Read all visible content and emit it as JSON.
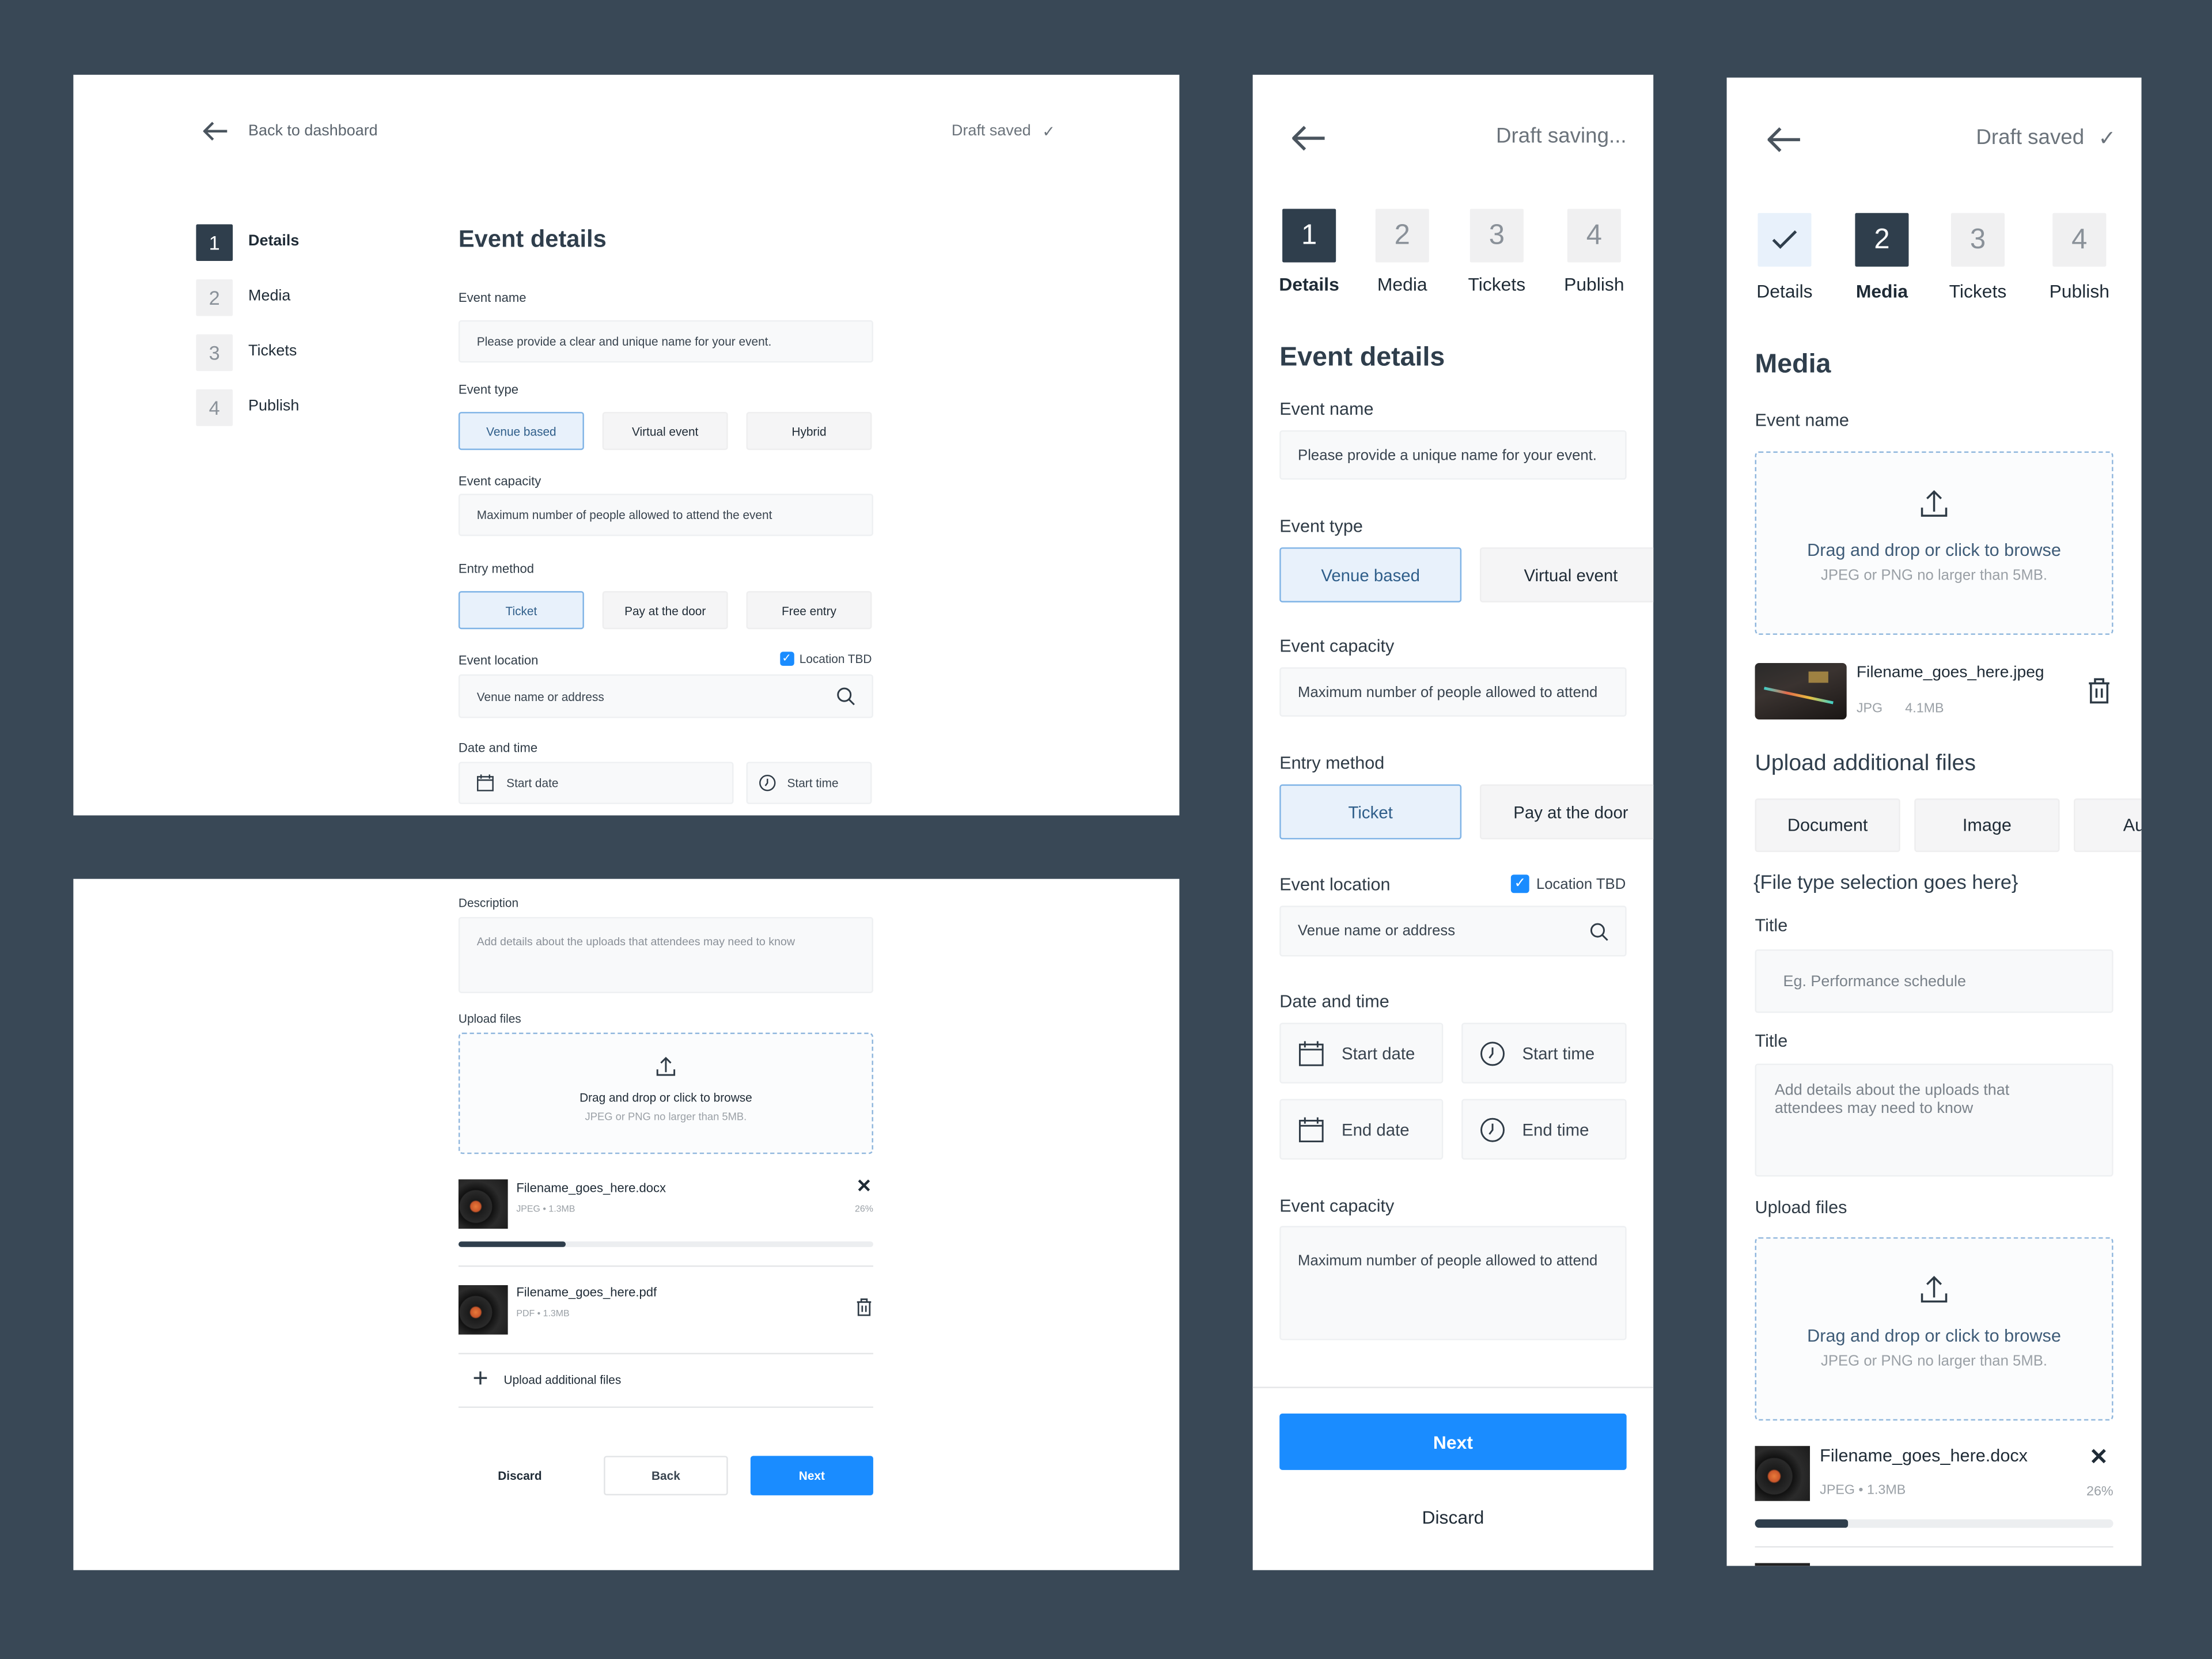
{
  "colors": {
    "background": "#394856",
    "primary_dark": "#2f3e4c",
    "accent_blue": "#1a8cff",
    "selected_bg": "#e8f1fb"
  },
  "desktop_details": {
    "back_label": "Back to dashboard",
    "draft_status": "Draft saved",
    "steps": [
      {
        "num": "1",
        "label": "Details"
      },
      {
        "num": "2",
        "label": "Media"
      },
      {
        "num": "3",
        "label": "Tickets"
      },
      {
        "num": "4",
        "label": "Publish"
      }
    ],
    "title": "Event details",
    "event_name_label": "Event name",
    "event_name_placeholder": "Please provide a clear and unique name for your event.",
    "event_type_label": "Event type",
    "event_types": [
      "Venue based",
      "Virtual event",
      "Hybrid"
    ],
    "capacity_label": "Event capacity",
    "capacity_placeholder": "Maximum number of people allowed to attend the event",
    "entry_label": "Entry method",
    "entry_methods": [
      "Ticket",
      "Pay at the door",
      "Free entry"
    ],
    "location_label": "Event location",
    "location_tbd": "Location TBD",
    "location_placeholder": "Venue name or address",
    "datetime_label": "Date and time",
    "start_date": "Start date",
    "start_time": "Start time"
  },
  "desktop_media": {
    "description_label": "Description",
    "description_placeholder": "Add details about the uploads that attendees may need to know",
    "upload_label": "Upload files",
    "drop_text": "Drag and drop or click to browse",
    "drop_sub": "JPEG or PNG no larger than 5MB.",
    "files": [
      {
        "name": "Filename_goes_here.docx",
        "type": "JPEG",
        "size": "1.3MB",
        "progress": "26%",
        "progress_value": 26
      },
      {
        "name": "Filename_goes_here.pdf",
        "type": "PDF",
        "size": "1.3MB"
      }
    ],
    "upload_more": "Upload additional files",
    "discard": "Discard",
    "back": "Back",
    "next": "Next"
  },
  "mobile_details": {
    "draft_status": "Draft saving...",
    "steps": [
      {
        "num": "1",
        "label": "Details"
      },
      {
        "num": "2",
        "label": "Media"
      },
      {
        "num": "3",
        "label": "Tickets"
      },
      {
        "num": "4",
        "label": "Publish"
      }
    ],
    "title": "Event details",
    "event_name_label": "Event name",
    "event_name_placeholder": "Please provide a unique name for your event.",
    "event_type_label": "Event type",
    "event_types": [
      "Venue based",
      "Virtual event"
    ],
    "capacity_label": "Event capacity",
    "capacity_placeholder": "Maximum number of people allowed to attend",
    "entry_label": "Entry method",
    "entry_methods": [
      "Ticket",
      "Pay at the door"
    ],
    "location_label": "Event location",
    "location_tbd": "Location TBD",
    "location_placeholder": "Venue name or address",
    "datetime_label": "Date and time",
    "start_date": "Start date",
    "start_time": "Start time",
    "end_date": "End date",
    "end_time": "End time",
    "capacity2_label": "Event capacity",
    "capacity2_placeholder": "Maximum number of people allowed to attend",
    "next": "Next",
    "discard": "Discard"
  },
  "mobile_media": {
    "draft_status": "Draft saved",
    "steps": [
      {
        "num": "",
        "label": "Details"
      },
      {
        "num": "2",
        "label": "Media"
      },
      {
        "num": "3",
        "label": "Tickets"
      },
      {
        "num": "4",
        "label": "Publish"
      }
    ],
    "title": "Media",
    "event_name_label": "Event name",
    "drop_text": "Drag and drop or click to browse",
    "drop_sub": "JPEG or PNG no larger than 5MB.",
    "file1": {
      "name": "Filename_goes_here.jpeg",
      "type": "JPG",
      "size": "4.1MB"
    },
    "additional_heading": "Upload additional files",
    "file_types": [
      "Document",
      "Image",
      "Au"
    ],
    "file_type_placeholder": "{File type selection goes here}",
    "title_label": "Title",
    "title_placeholder": "Eg. Performance schedule",
    "title2_label": "Title",
    "details_placeholder": "Add details about the uploads that attendees may need to know",
    "upload_label": "Upload files",
    "file2": {
      "name": "Filename_goes_here.docx",
      "type": "JPEG",
      "size": "1.3MB",
      "progress": "26%",
      "progress_value": 26
    }
  }
}
